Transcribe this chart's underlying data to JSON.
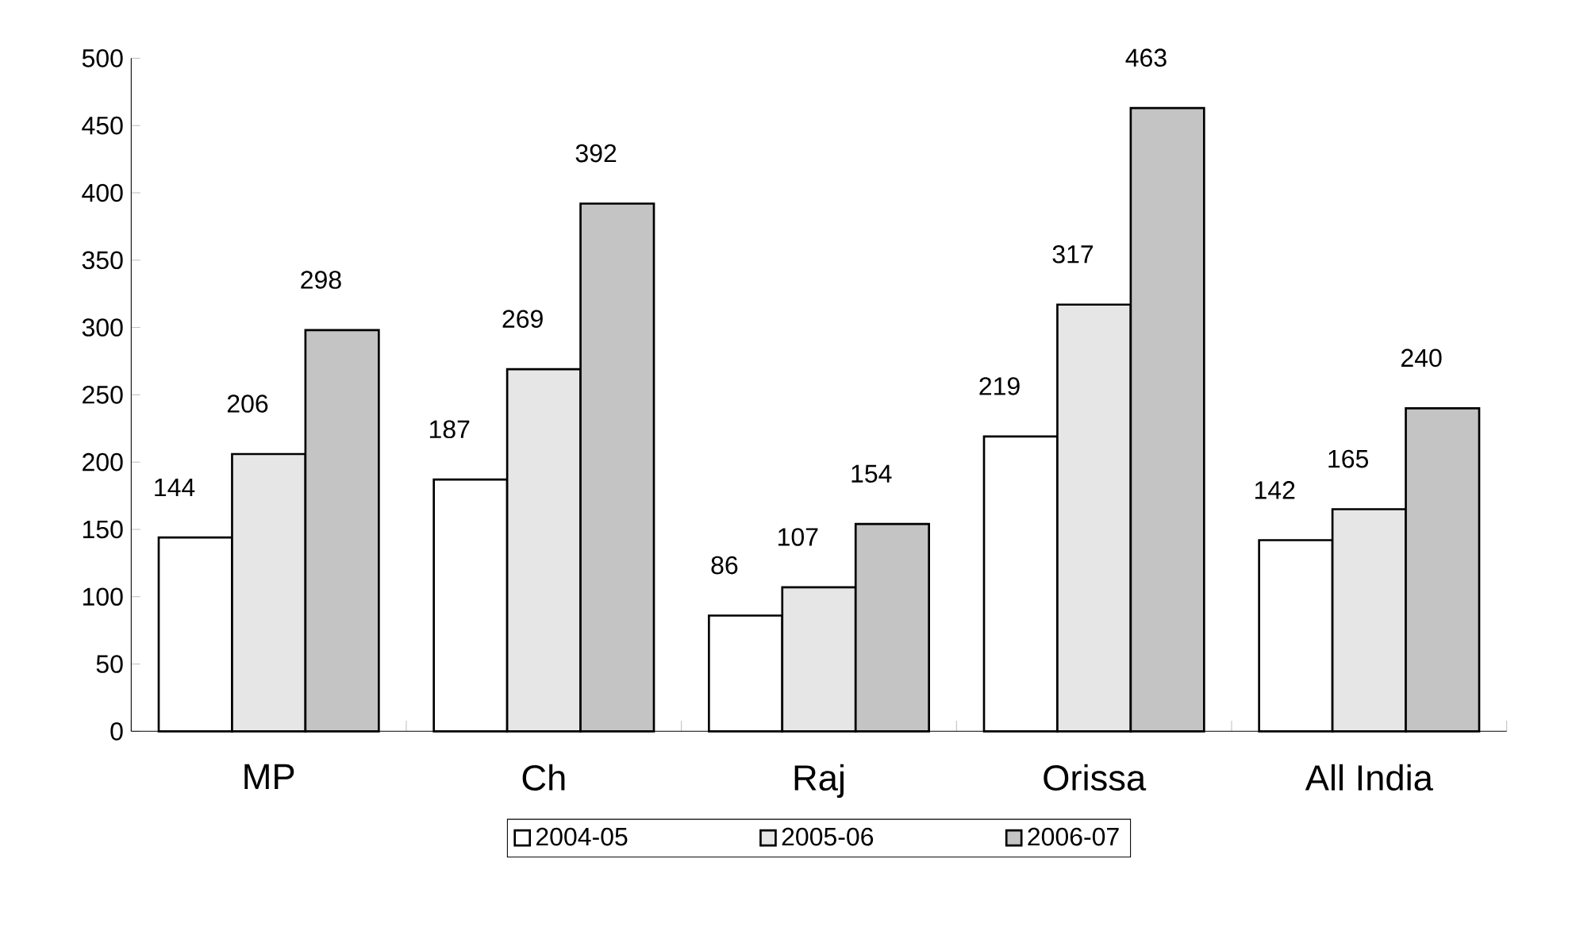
{
  "chart_data": {
    "type": "bar",
    "categories": [
      "MP",
      "Ch",
      "Raj",
      "Orissa",
      "All India"
    ],
    "series": [
      {
        "name": "2004-05",
        "color": "#ffffff",
        "values": [
          144,
          187,
          86,
          219,
          142
        ]
      },
      {
        "name": "2005-06",
        "color": "#e6e6e6",
        "values": [
          206,
          269,
          107,
          317,
          165
        ]
      },
      {
        "name": "2006-07",
        "color": "#c4c4c4",
        "values": [
          298,
          392,
          154,
          463,
          240
        ]
      }
    ],
    "ylim": [
      0,
      500
    ],
    "yticks": [
      0,
      50,
      100,
      150,
      200,
      250,
      300,
      350,
      400,
      450,
      500
    ],
    "data_labels": true,
    "legend": "bottom",
    "grid": false
  }
}
